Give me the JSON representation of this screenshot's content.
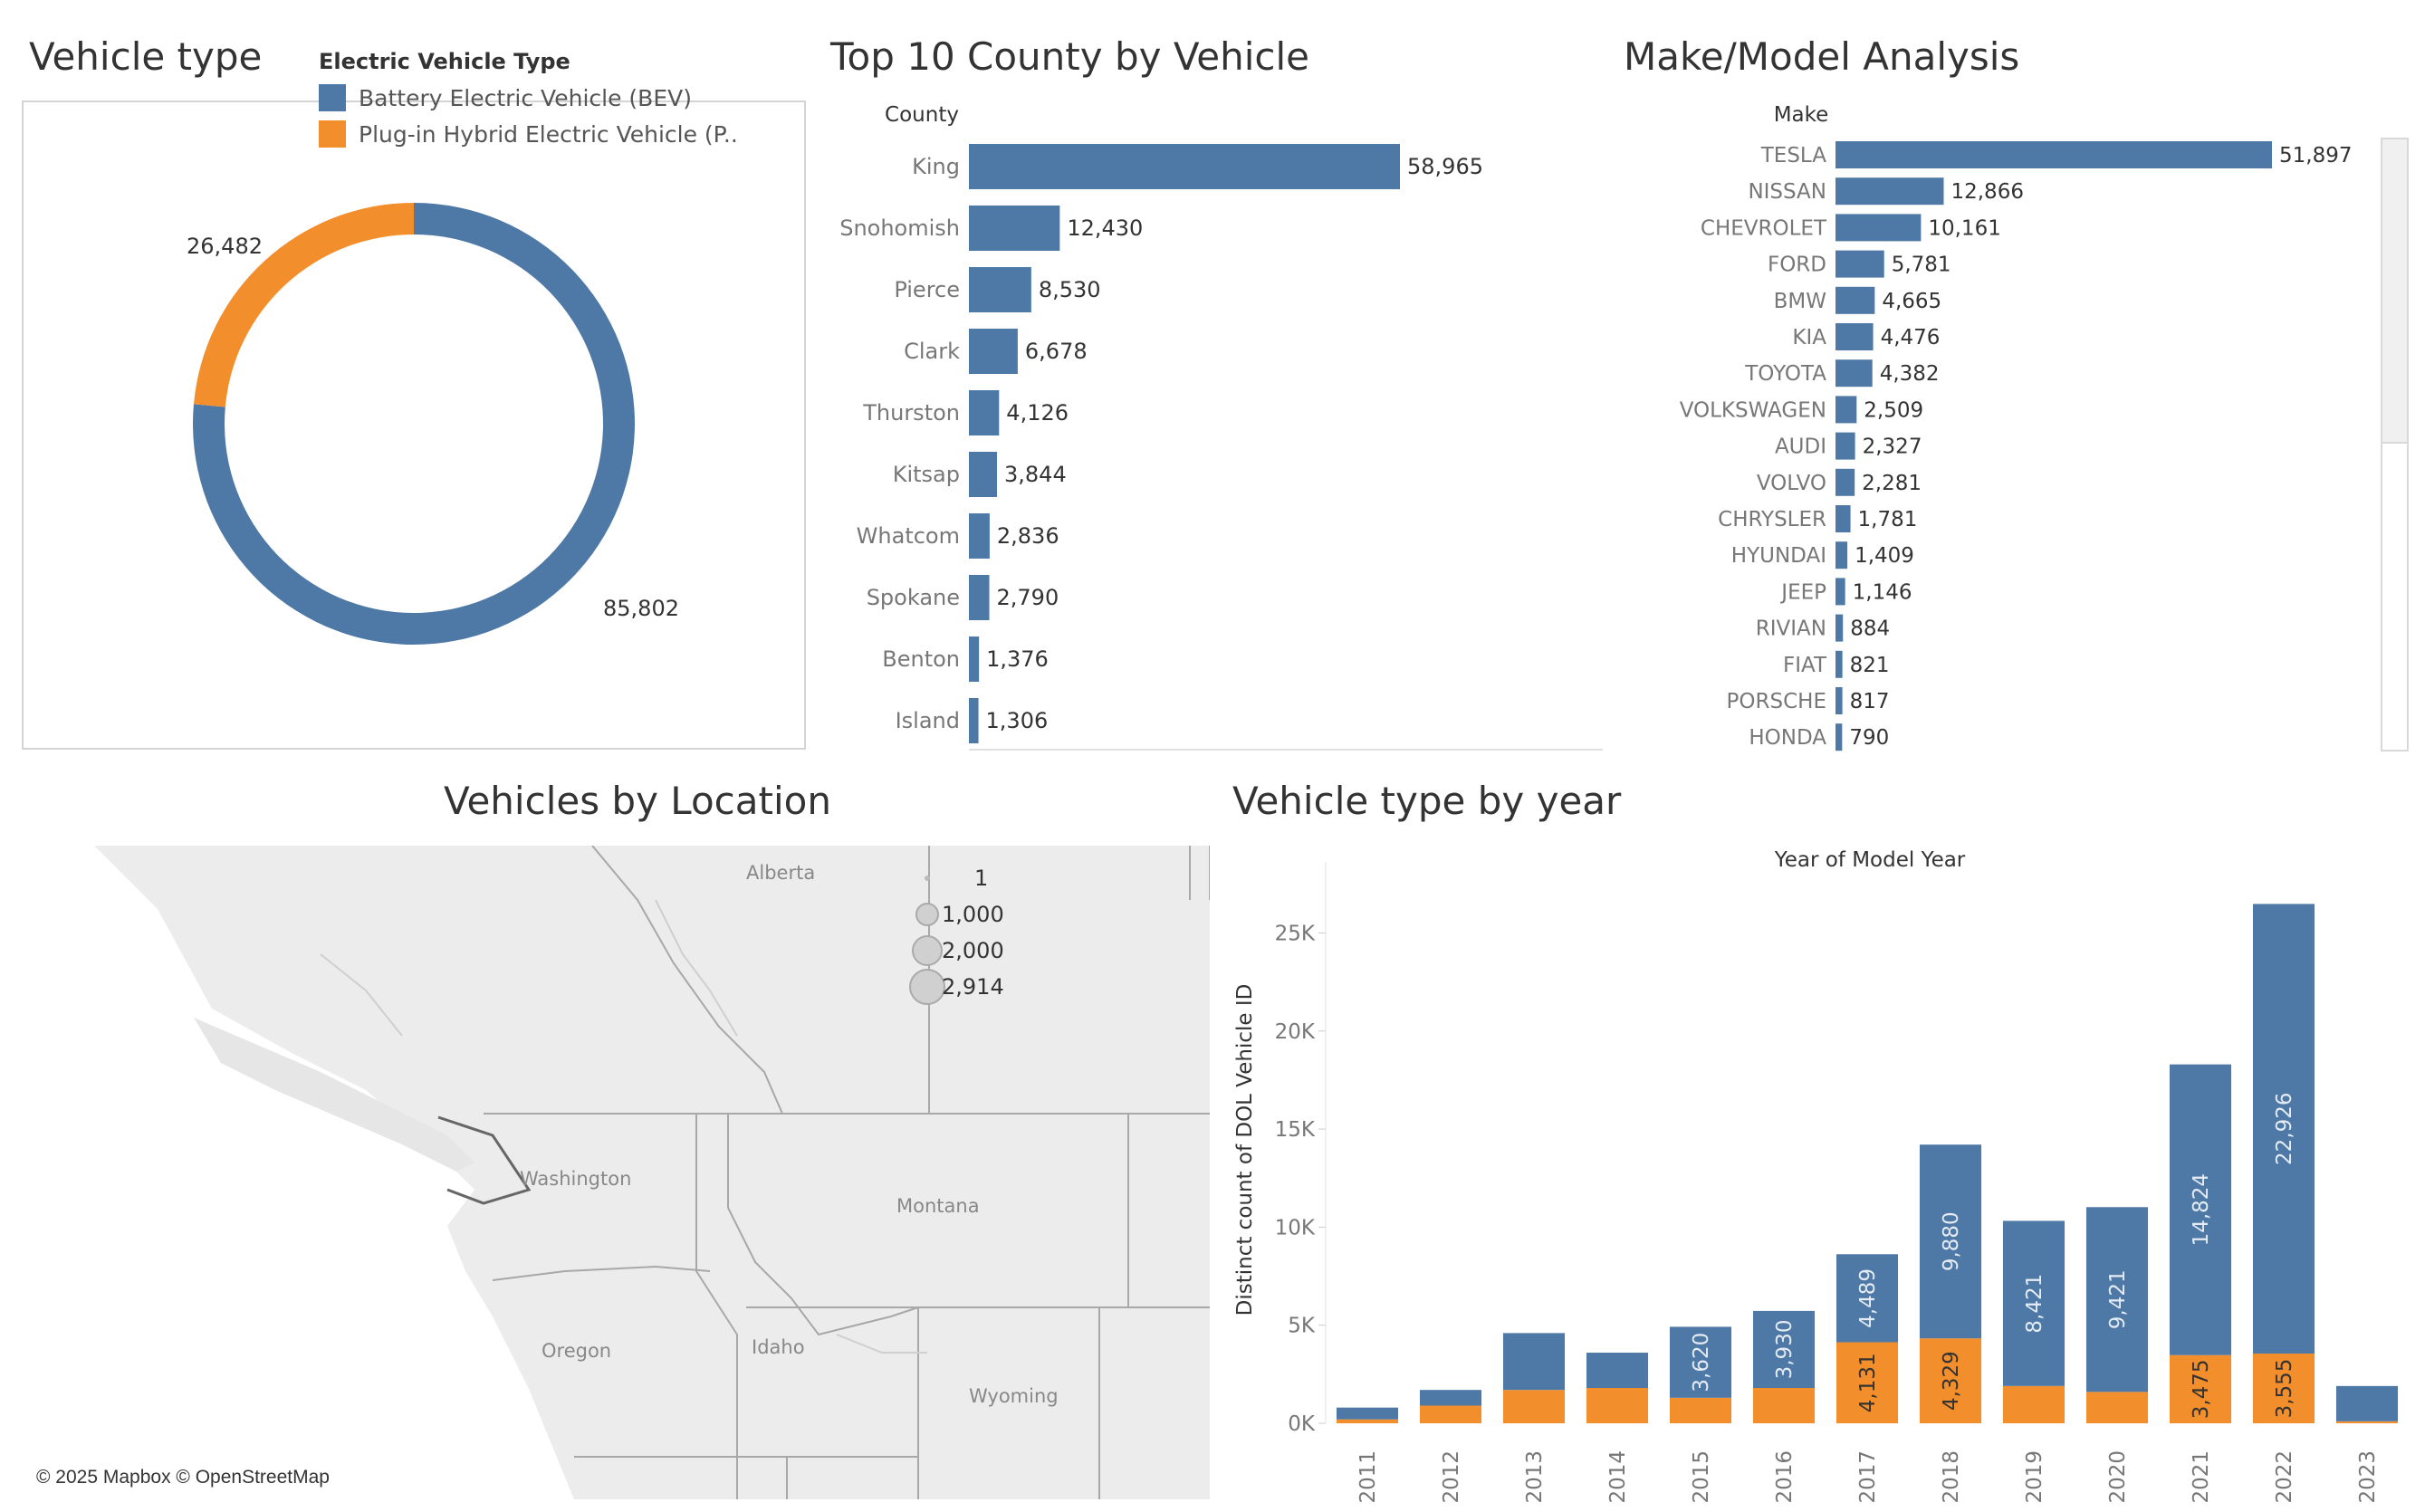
{
  "titles": {
    "vehicle_type": "Vehicle type",
    "top_county": "Top 10 County by Vehicle",
    "make_model": "Make/Model Analysis",
    "location": "Vehicles by Location",
    "type_by_year": "Vehicle type by year"
  },
  "colors": {
    "bev": "#4e79a7",
    "phev": "#f28e2b"
  },
  "vehicle_legend": {
    "title": "Electric Vehicle Type",
    "items": [
      {
        "label": "Battery Electric Vehicle (BEV)",
        "color": "#4e79a7"
      },
      {
        "label": "Plug-in Hybrid Electric Vehicle (P..",
        "color": "#f28e2b"
      }
    ]
  },
  "map": {
    "labels": [
      "Alberta",
      "Washington",
      "Montana",
      "Oregon",
      "Idaho",
      "Wyoming"
    ],
    "size_legend": [
      "1",
      "1,000",
      "2,000",
      "2,914"
    ],
    "attribution": "© 2025 Mapbox © OpenStreetMap"
  },
  "chart_data": [
    {
      "id": "vehicle-type",
      "type": "pie",
      "labels": [
        "Battery Electric Vehicle (BEV)",
        "Plug-in Hybrid Electric Vehicle (P.."
      ],
      "values": [
        85802,
        26482
      ],
      "value_labels": [
        "85,802",
        "26,482"
      ]
    },
    {
      "id": "county",
      "type": "bar",
      "orientation": "horizontal",
      "header": "County",
      "categories": [
        "King",
        "Snohomish",
        "Pierce",
        "Clark",
        "Thurston",
        "Kitsap",
        "Whatcom",
        "Spokane",
        "Benton",
        "Island"
      ],
      "values": [
        58965,
        12430,
        8530,
        6678,
        4126,
        3844,
        2836,
        2790,
        1376,
        1306
      ],
      "value_labels": [
        "58,965",
        "12,430",
        "8,530",
        "6,678",
        "4,126",
        "3,844",
        "2,836",
        "2,790",
        "1,376",
        "1,306"
      ]
    },
    {
      "id": "make",
      "type": "bar",
      "orientation": "horizontal",
      "header": "Make",
      "categories": [
        "TESLA",
        "NISSAN",
        "CHEVROLET",
        "FORD",
        "BMW",
        "KIA",
        "TOYOTA",
        "VOLKSWAGEN",
        "AUDI",
        "VOLVO",
        "CHRYSLER",
        "HYUNDAI",
        "JEEP",
        "RIVIAN",
        "FIAT",
        "PORSCHE",
        "HONDA"
      ],
      "values": [
        51897,
        12866,
        10161,
        5781,
        4665,
        4476,
        4382,
        2509,
        2327,
        2281,
        1781,
        1409,
        1146,
        884,
        821,
        817,
        790
      ],
      "value_labels": [
        "51,897",
        "12,866",
        "10,161",
        "5,781",
        "4,665",
        "4,476",
        "4,382",
        "2,509",
        "2,327",
        "2,281",
        "1,781",
        "1,409",
        "1,146",
        "884",
        "821",
        "817",
        "790"
      ]
    },
    {
      "id": "year",
      "type": "bar",
      "stacked": true,
      "title": "Year of Model Year",
      "ylabel": "Distinct count of DOL Vehicle ID",
      "categories": [
        "2011",
        "2012",
        "2013",
        "2014",
        "2015",
        "2016",
        "2017",
        "2018",
        "2019",
        "2020",
        "2021",
        "2022",
        "2023"
      ],
      "yticks": [
        "0K",
        "5K",
        "10K",
        "15K",
        "20K",
        "25K"
      ],
      "ylim": [
        0,
        27700
      ],
      "series": [
        {
          "color": "#f28e2b",
          "values": [
            200,
            900,
            1700,
            1800,
            1300,
            1800,
            4131,
            4329,
            1900,
            1600,
            3475,
            3555,
            100
          ],
          "labels": [
            "",
            "",
            "",
            "",
            "",
            "",
            "4,131",
            "4,329",
            "",
            "",
            "3,475",
            "3,555",
            ""
          ]
        },
        {
          "color": "#4e79a7",
          "values": [
            600,
            800,
            2900,
            1800,
            3620,
            3930,
            4489,
            9880,
            8421,
            9421,
            14824,
            22926,
            1800
          ],
          "labels": [
            "",
            "",
            "",
            "",
            "3,620",
            "3,930",
            "4,489",
            "9,880",
            "8,421",
            "9,421",
            "14,824",
            "22,926",
            ""
          ]
        }
      ]
    }
  ]
}
